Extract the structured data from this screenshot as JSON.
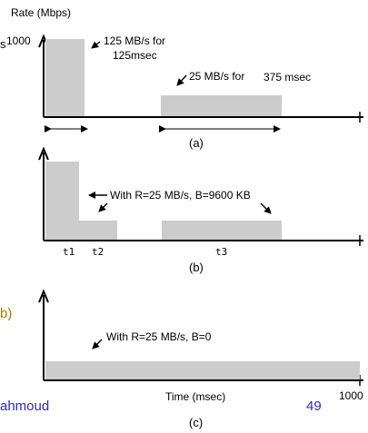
{
  "top_labels": {
    "rate_axis": "Rate (Mbps)",
    "s_fragment": "s"
  },
  "panel_a": {
    "y_tick": "1000",
    "burst_label_line1": "125 MB/s for",
    "burst_label_line2": "125msec",
    "sustain_label_left": "25 MB/s for",
    "sustain_label_right": "375 msec",
    "caption": "(a)"
  },
  "panel_b": {
    "annotation": "With R=25 MB/s, B=9600 KB",
    "t1": "t1",
    "t2": "t2",
    "t3": "t3",
    "caption": "(b)"
  },
  "panel_c": {
    "annotation": "With R=25 MB/s, B=0",
    "x_axis_label": "Time (msec)",
    "x_tick": "1000",
    "caption": "(c)"
  },
  "footer": {
    "author_fragment": "ahmoud",
    "page_number": "49",
    "left_fragment": "b)"
  },
  "colors": {
    "bar_fill": "#cccccc",
    "axis": "#000000",
    "footer_blue": "#2a2acc",
    "fragment_gold": "#a07a00"
  }
}
